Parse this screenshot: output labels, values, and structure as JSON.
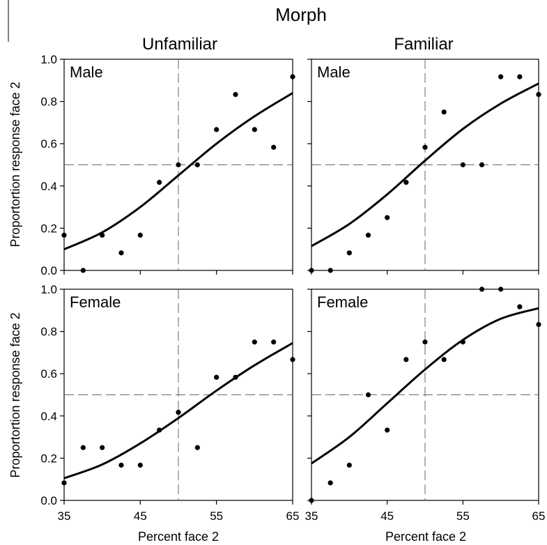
{
  "title": "Morph",
  "column_titles": [
    "Unfamiliar",
    "Familiar"
  ],
  "ylabel": "Proportortion response face 2",
  "xlabel": "Percent face 2",
  "chart_data": [
    {
      "type": "scatter",
      "column": "Unfamiliar",
      "panel_label": "Male",
      "xlim": [
        35,
        65
      ],
      "ylim": [
        0,
        1
      ],
      "xticks": [
        "35",
        "45",
        "55",
        "65"
      ],
      "yticks": [
        "0.0",
        "0.2",
        "0.4",
        "0.6",
        "0.8",
        "1.0"
      ],
      "points": [
        [
          35,
          0.167
        ],
        [
          37.5,
          0.0
        ],
        [
          40,
          0.167
        ],
        [
          42.5,
          0.083
        ],
        [
          45,
          0.167
        ],
        [
          47.5,
          0.417
        ],
        [
          50,
          0.5
        ],
        [
          52.5,
          0.5
        ],
        [
          55,
          0.667
        ],
        [
          57.5,
          0.833
        ],
        [
          60,
          0.667
        ],
        [
          62.5,
          0.583
        ],
        [
          65,
          0.917
        ]
      ],
      "fit": [
        [
          35,
          0.1
        ],
        [
          40,
          0.18
        ],
        [
          45,
          0.3
        ],
        [
          50,
          0.45
        ],
        [
          55,
          0.6
        ],
        [
          60,
          0.73
        ],
        [
          65,
          0.84
        ]
      ],
      "reference_lines": {
        "x": 50,
        "y": 0.5
      }
    },
    {
      "type": "scatter",
      "column": "Familiar",
      "panel_label": "Male",
      "xlim": [
        35,
        65
      ],
      "ylim": [
        0,
        1
      ],
      "xticks": [
        "35",
        "45",
        "55",
        "65"
      ],
      "yticks": [
        "0.0",
        "0.2",
        "0.4",
        "0.6",
        "0.8",
        "1.0"
      ],
      "points": [
        [
          35,
          0.0
        ],
        [
          37.5,
          0.0
        ],
        [
          40,
          0.083
        ],
        [
          42.5,
          0.167
        ],
        [
          45,
          0.25
        ],
        [
          47.5,
          0.417
        ],
        [
          50,
          0.583
        ],
        [
          52.5,
          0.75
        ],
        [
          55,
          0.5
        ],
        [
          57.5,
          0.5
        ],
        [
          60,
          0.917
        ],
        [
          62.5,
          0.917
        ],
        [
          65,
          0.833
        ]
      ],
      "fit": [
        [
          35,
          0.115
        ],
        [
          40,
          0.22
        ],
        [
          45,
          0.36
        ],
        [
          50,
          0.52
        ],
        [
          55,
          0.67
        ],
        [
          60,
          0.79
        ],
        [
          65,
          0.885
        ]
      ],
      "reference_lines": {
        "x": 50,
        "y": 0.5
      }
    },
    {
      "type": "scatter",
      "column": "Unfamiliar",
      "panel_label": "Female",
      "xlim": [
        35,
        65
      ],
      "ylim": [
        0,
        1
      ],
      "xticks": [
        "35",
        "45",
        "55",
        "65"
      ],
      "yticks": [
        "0.0",
        "0.2",
        "0.4",
        "0.6",
        "0.8",
        "1.0"
      ],
      "points": [
        [
          35,
          0.083
        ],
        [
          37.5,
          0.25
        ],
        [
          40,
          0.25
        ],
        [
          42.5,
          0.167
        ],
        [
          45,
          0.167
        ],
        [
          47.5,
          0.333
        ],
        [
          50,
          0.417
        ],
        [
          52.5,
          0.25
        ],
        [
          55,
          0.583
        ],
        [
          57.5,
          0.583
        ],
        [
          60,
          0.75
        ],
        [
          62.5,
          0.75
        ],
        [
          65,
          0.667
        ]
      ],
      "fit": [
        [
          35,
          0.105
        ],
        [
          40,
          0.17
        ],
        [
          45,
          0.27
        ],
        [
          50,
          0.39
        ],
        [
          55,
          0.52
        ],
        [
          60,
          0.64
        ],
        [
          65,
          0.745
        ]
      ],
      "reference_lines": {
        "x": 50,
        "y": 0.5
      }
    },
    {
      "type": "scatter",
      "column": "Familiar",
      "panel_label": "Female",
      "xlim": [
        35,
        65
      ],
      "ylim": [
        0,
        1
      ],
      "xticks": [
        "35",
        "45",
        "55",
        "65"
      ],
      "yticks": [
        "0.0",
        "0.2",
        "0.4",
        "0.6",
        "0.8",
        "1.0"
      ],
      "points": [
        [
          35,
          0.0
        ],
        [
          37.5,
          0.083
        ],
        [
          40,
          0.167
        ],
        [
          42.5,
          0.5
        ],
        [
          45,
          0.333
        ],
        [
          47.5,
          0.667
        ],
        [
          50,
          0.75
        ],
        [
          52.5,
          0.667
        ],
        [
          55,
          0.75
        ],
        [
          57.5,
          1.0
        ],
        [
          60,
          1.0
        ],
        [
          62.5,
          0.917
        ],
        [
          65,
          0.833
        ]
      ],
      "fit": [
        [
          35,
          0.175
        ],
        [
          40,
          0.3
        ],
        [
          45,
          0.46
        ],
        [
          50,
          0.62
        ],
        [
          55,
          0.76
        ],
        [
          60,
          0.86
        ],
        [
          65,
          0.91
        ]
      ],
      "reference_lines": {
        "x": 50,
        "y": 0.5
      }
    }
  ]
}
